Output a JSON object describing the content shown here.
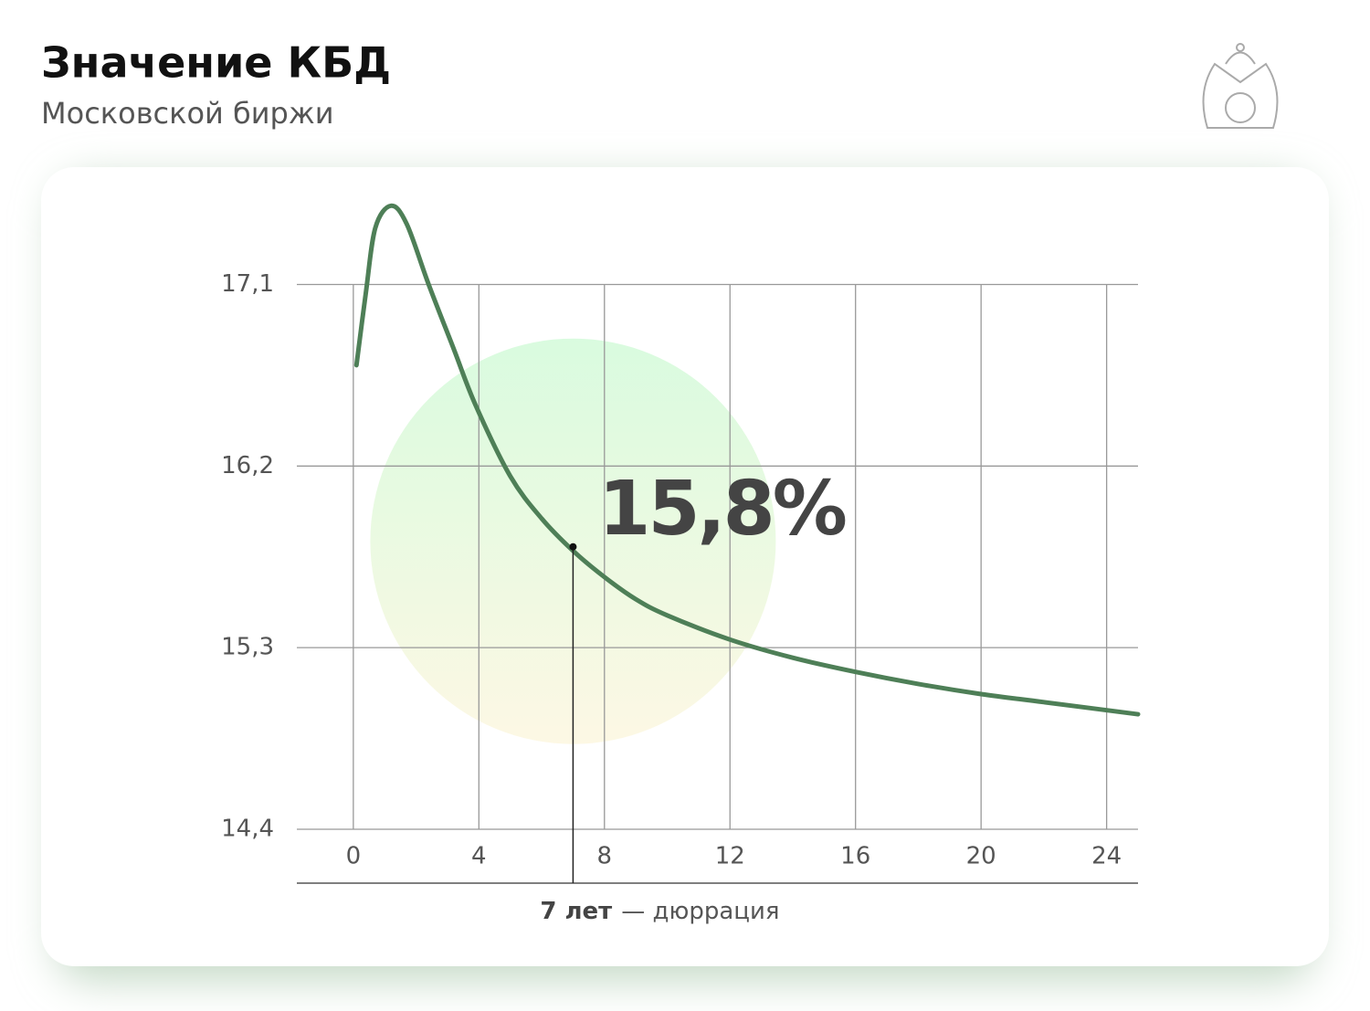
{
  "title": "Значение КБД",
  "subtitle": "Московской биржи",
  "chart_data": {
    "type": "line",
    "x": [
      0.1,
      0.4,
      0.7,
      1.2,
      1.7,
      2.4,
      3.2,
      3.9,
      5,
      6,
      7,
      8,
      9,
      10,
      12,
      14,
      16,
      18,
      20,
      22,
      25
    ],
    "series": [
      {
        "color": "#4e7f57",
        "values": [
          16.7,
          17.06,
          17.38,
          17.49,
          17.4,
          17.1,
          16.78,
          16.5,
          16.15,
          15.94,
          15.78,
          15.65,
          15.54,
          15.46,
          15.34,
          15.25,
          15.18,
          15.12,
          15.07,
          15.03,
          14.97
        ]
      }
    ],
    "xlim": [
      -1.8,
      25
    ],
    "xticks": [
      0,
      4,
      8,
      12,
      16,
      20,
      24
    ],
    "ylim": [
      14.4,
      17.6
    ],
    "yticks": [
      {
        "value": 14.4,
        "label": "14,4"
      },
      {
        "value": 15.3,
        "label": "15,3"
      },
      {
        "value": 16.2,
        "label": "16,2"
      },
      {
        "value": 17.1,
        "label": "17,1"
      }
    ],
    "grid": true,
    "highlight": {
      "x": 7,
      "value": 15.8,
      "label": "15,8%"
    },
    "x_label_bold": "7 лет",
    "x_label": "— дюррация"
  }
}
